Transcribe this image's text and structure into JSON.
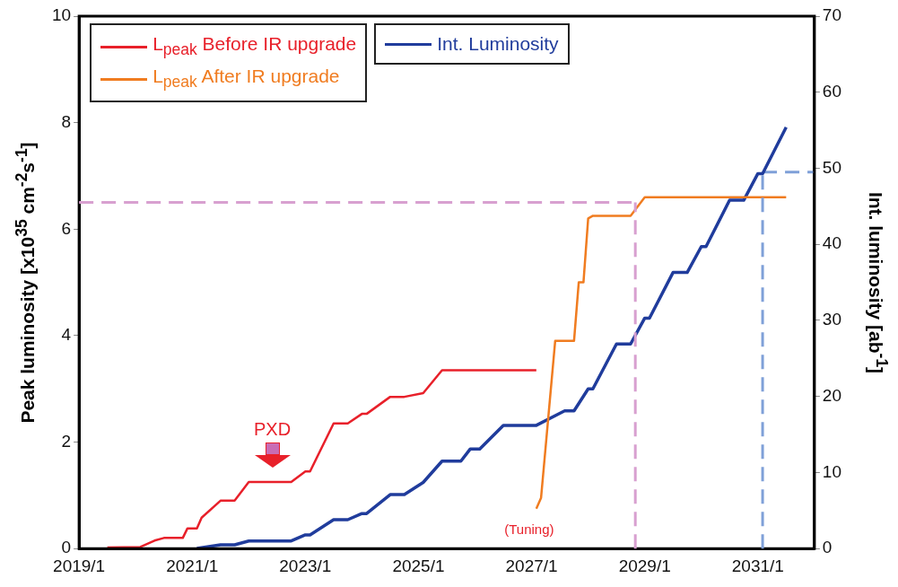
{
  "chart_data": {
    "type": "line",
    "ylabel": "Peak luminosity [x10$^{35}$ cm$^{-2}$s$^{-1}$]",
    "y2label": "Int. luminosity [ab$^{-1}$]",
    "xlim": [
      "2019-01",
      "2032-01"
    ],
    "xticks": [
      {
        "value": "2019-01",
        "label": "2019/1"
      },
      {
        "value": "2021-01",
        "label": "2021/1"
      },
      {
        "value": "2023-01",
        "label": "2023/1"
      },
      {
        "value": "2025-01",
        "label": "2025/1"
      },
      {
        "value": "2027-01",
        "label": "2027/1"
      },
      {
        "value": "2029-01",
        "label": "2029/1"
      },
      {
        "value": "2031-01",
        "label": "2031/1"
      }
    ],
    "ylim": [
      0,
      10
    ],
    "yticks": [
      0,
      2,
      4,
      6,
      8,
      10
    ],
    "y2lim": [
      0,
      70
    ],
    "y2ticks": [
      0,
      10,
      20,
      30,
      40,
      50,
      60,
      70
    ],
    "series": [
      {
        "name": "L$_{peak}$ Before IR upgrade",
        "color": "#e8202a",
        "axis": "y",
        "x": [
          "2019-07",
          "2020-02",
          "2020-05",
          "2020-07",
          "2020-11",
          "2020-12",
          "2021-02",
          "2021-03",
          "2021-07",
          "2021-10",
          "2022-01",
          "2022-10",
          "2023-01",
          "2023-02",
          "2023-07",
          "2023-10",
          "2024-01",
          "2024-02",
          "2024-07",
          "2024-10",
          "2025-02",
          "2025-06",
          "2027-02"
        ],
        "values": [
          0.02,
          0.03,
          0.15,
          0.2,
          0.2,
          0.38,
          0.38,
          0.58,
          0.9,
          0.9,
          1.25,
          1.25,
          1.45,
          1.45,
          2.35,
          2.35,
          2.53,
          2.53,
          2.85,
          2.85,
          2.92,
          3.35,
          3.35
        ]
      },
      {
        "name": "L$_{peak}$ After IR upgrade",
        "color": "#f07c20",
        "axis": "y",
        "x": [
          "2027-02",
          "2027-03",
          "2027-06",
          "2027-10",
          "2027-11",
          "2027-12",
          "2028-01",
          "2028-02",
          "2028-10",
          "2029-01",
          "2031-07"
        ],
        "values": [
          0.75,
          0.95,
          3.9,
          3.9,
          5.0,
          5.0,
          6.2,
          6.25,
          6.25,
          6.6,
          6.6
        ]
      },
      {
        "name": "Int. Luminosity",
        "color": "#203c9c",
        "axis": "y2",
        "x": [
          "2021-02",
          "2021-07",
          "2021-10",
          "2022-01",
          "2022-10",
          "2023-01",
          "2023-02",
          "2023-07",
          "2023-10",
          "2024-01",
          "2024-02",
          "2024-07",
          "2024-10",
          "2025-02",
          "2025-06",
          "2025-10",
          "2025-12",
          "2026-02",
          "2026-07",
          "2027-02",
          "2027-08",
          "2027-10",
          "2028-01",
          "2028-02",
          "2028-07",
          "2028-10",
          "2029-01",
          "2029-02",
          "2029-07",
          "2029-10",
          "2030-01",
          "2030-02",
          "2030-07",
          "2030-10",
          "2031-01",
          "2031-02",
          "2031-07"
        ],
        "values": [
          0.02,
          0.5,
          0.5,
          1.0,
          1.0,
          1.8,
          1.8,
          3.8,
          3.8,
          4.6,
          4.6,
          7.1,
          7.1,
          8.7,
          11.5,
          11.5,
          13.1,
          13.1,
          16.2,
          16.2,
          18.1,
          18.1,
          21,
          21,
          26.9,
          26.9,
          30.3,
          30.3,
          36.3,
          36.3,
          39.7,
          39.7,
          45.8,
          45.8,
          49.3,
          49.3,
          55.4
        ]
      },
      {
        "type": "line",
        "color": "#7fa0d8",
        "axis": "y2",
        "line_style": "dashed",
        "x": [
          "2031-02",
          "2032-01"
        ],
        "values": [
          49.5,
          49.5
        ]
      }
    ],
    "ref_lines": [
      {
        "axis": "y",
        "value": 6.5,
        "color": "#d8a0d0",
        "line_style": "dashed"
      },
      {
        "axis": "x",
        "value": "2028-11",
        "color": "#d8a0d0",
        "line_style": "dashed"
      },
      {
        "axis": "x",
        "value": "2031-02",
        "color": "#7fa0d8",
        "line_style": "dashed"
      }
    ],
    "annotations": [
      {
        "text": "PXD",
        "x": "2022-06",
        "y": 1.25
      },
      {
        "text": "(Tuning)",
        "x": "2027-02",
        "y": 0.75
      }
    ],
    "legend": "top left",
    "grid": false,
    "marker": "none",
    "line_style": "solid"
  }
}
